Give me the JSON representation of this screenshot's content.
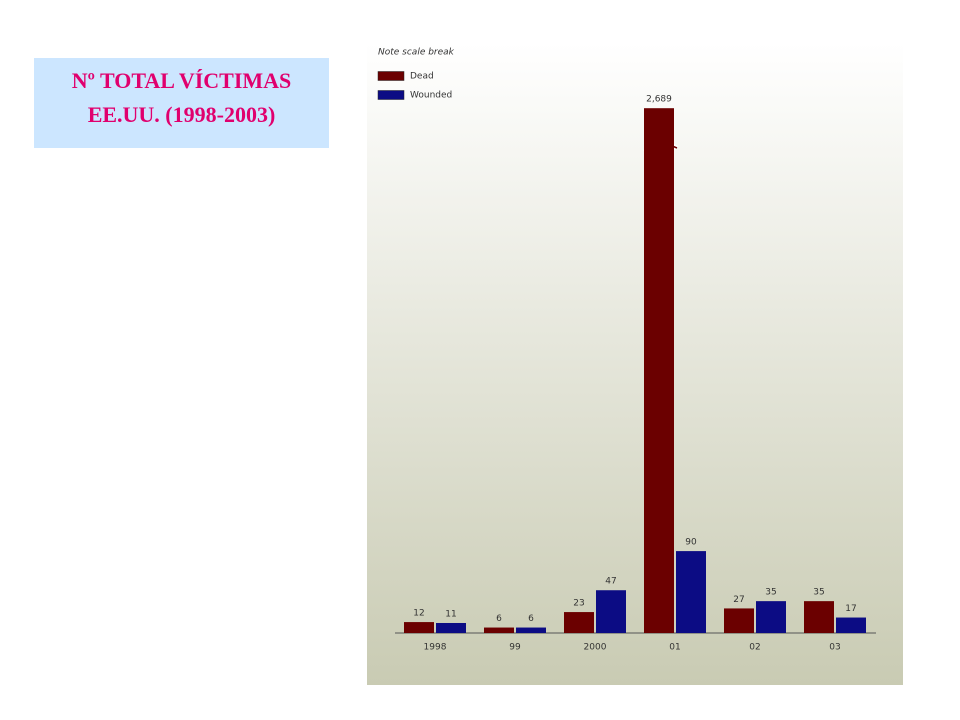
{
  "chart_data": {
    "type": "bar",
    "title": "Nº TOTAL VÍCTIMAS",
    "subtitle": "EE.UU. (1998-2003)",
    "note": "Note scale break",
    "categories": [
      "1998",
      "99",
      "2000",
      "01",
      "02",
      "03"
    ],
    "series": [
      {
        "name": "Dead",
        "color": "#6b0000",
        "values": [
          12,
          6,
          23,
          2689,
          27,
          35
        ],
        "value_labels": [
          "12",
          "6",
          "23",
          "2,689",
          "27",
          "35"
        ]
      },
      {
        "name": "Wounded",
        "color": "#0c0c84",
        "values": [
          11,
          6,
          47,
          90,
          35,
          17
        ]
      }
    ],
    "legend": "top-left"
  }
}
